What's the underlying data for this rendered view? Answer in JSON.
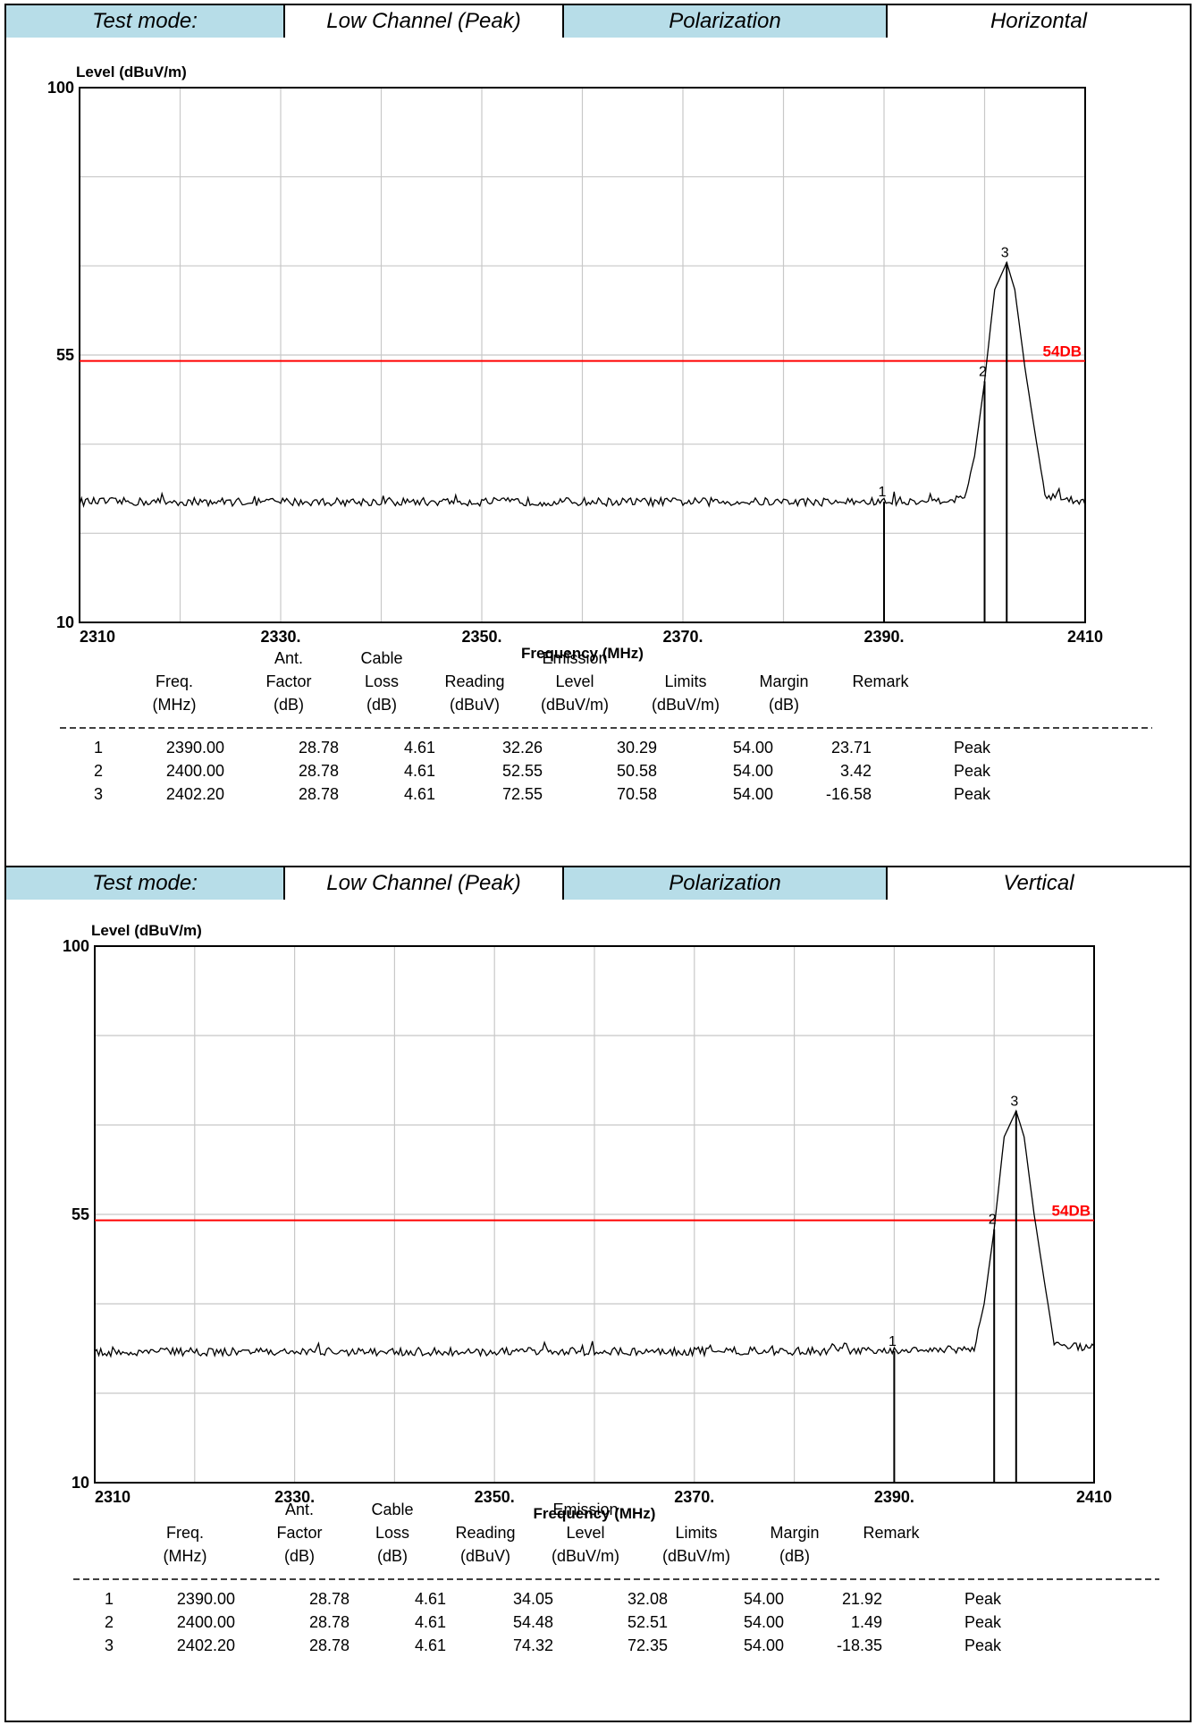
{
  "panels": [
    {
      "header": {
        "test_mode_label": "Test mode:",
        "test_mode_value": "Low Channel (Peak)",
        "polarization_label": "Polarization",
        "polarization_value": "Horizontal"
      },
      "chart_data": {
        "type": "line",
        "ylabel": "Level (dBuV/m)",
        "xlabel": "Frequency (MHz)",
        "xlim": [
          2310,
          2410
        ],
        "ylim": [
          10,
          100
        ],
        "xticks": [
          2310,
          2330,
          2350,
          2370,
          2390,
          2410
        ],
        "xtick_labels": [
          "2310",
          "2330.",
          "2350.",
          "2370.",
          "2390.",
          "2410"
        ],
        "yticks": [
          10,
          55,
          100
        ],
        "ytick_labels": [
          "10",
          "55",
          "100"
        ],
        "grid": true,
        "limit_line": {
          "value": 54,
          "label": "54DB",
          "color": "#ff0000"
        },
        "noise_floor": 30.5,
        "series": [
          {
            "x": [
              2310,
              2390,
              2398,
              2399,
              2400,
              2401,
              2402.2,
              2403,
              2404,
              2405,
              2406,
              2410
            ],
            "y": [
              30.3,
              30.29,
              30.8,
              38,
              50.58,
              66,
              70.58,
              66,
              53,
              42,
              31.5,
              30.3
            ]
          }
        ],
        "markers": [
          {
            "label": "1",
            "x": 2390.0,
            "y": 30.29
          },
          {
            "label": "2",
            "x": 2400.0,
            "y": 50.58
          },
          {
            "label": "3",
            "x": 2402.2,
            "y": 70.58
          }
        ]
      },
      "table": {
        "header_line1": [
          "",
          "Ant.",
          "Cable",
          "",
          "Emission",
          "",
          "",
          ""
        ],
        "header_line2": [
          "Freq.",
          "Factor",
          "Loss",
          "Reading",
          "Level",
          "Limits",
          "Margin",
          "Remark"
        ],
        "header_line3": [
          "(MHz)",
          "(dB)",
          "(dB)",
          "(dBuV)",
          "(dBuV/m)",
          "(dBuV/m)",
          "(dB)",
          ""
        ],
        "rows": [
          [
            "1",
            "2390.00",
            "28.78",
            "4.61",
            "32.26",
            "30.29",
            "54.00",
            "23.71",
            "Peak"
          ],
          [
            "2",
            "2400.00",
            "28.78",
            "4.61",
            "52.55",
            "50.58",
            "54.00",
            "3.42",
            "Peak"
          ],
          [
            "3",
            "2402.20",
            "28.78",
            "4.61",
            "72.55",
            "70.58",
            "54.00",
            "-16.58",
            "Peak"
          ]
        ]
      }
    },
    {
      "header": {
        "test_mode_label": "Test mode:",
        "test_mode_value": "Low Channel (Peak)",
        "polarization_label": "Polarization",
        "polarization_value": "Vertical"
      },
      "chart_data": {
        "type": "line",
        "ylabel": "Level (dBuV/m)",
        "xlabel": "Frequency (MHz)",
        "xlim": [
          2310,
          2410
        ],
        "ylim": [
          10,
          100
        ],
        "xticks": [
          2310,
          2330,
          2350,
          2370,
          2390,
          2410
        ],
        "xtick_labels": [
          "2310",
          "2330.",
          "2350.",
          "2370.",
          "2390.",
          "2410"
        ],
        "yticks": [
          10,
          55,
          100
        ],
        "ytick_labels": [
          "10",
          "55",
          "100"
        ],
        "grid": true,
        "limit_line": {
          "value": 54,
          "label": "54DB",
          "color": "#ff0000"
        },
        "noise_floor": 32.2,
        "series": [
          {
            "x": [
              2310,
              2390,
              2398,
              2399,
              2400,
              2401,
              2402.2,
              2403,
              2404,
              2405,
              2406,
              2410
            ],
            "y": [
              31.9,
              32.08,
              32.5,
              40,
              52.51,
              68,
              72.35,
              68,
              55,
              44,
              33.5,
              32.5
            ]
          }
        ],
        "markers": [
          {
            "label": "1",
            "x": 2390.0,
            "y": 32.08
          },
          {
            "label": "2",
            "x": 2400.0,
            "y": 52.51
          },
          {
            "label": "3",
            "x": 2402.2,
            "y": 72.35
          }
        ]
      },
      "table": {
        "header_line1": [
          "",
          "Ant.",
          "Cable",
          "",
          "Emission",
          "",
          "",
          ""
        ],
        "header_line2": [
          "Freq.",
          "Factor",
          "Loss",
          "Reading",
          "Level",
          "Limits",
          "Margin",
          "Remark"
        ],
        "header_line3": [
          "(MHz)",
          "(dB)",
          "(dB)",
          "(dBuV)",
          "(dBuV/m)",
          "(dBuV/m)",
          "(dB)",
          ""
        ],
        "rows": [
          [
            "1",
            "2390.00",
            "28.78",
            "4.61",
            "34.05",
            "32.08",
            "54.00",
            "21.92",
            "Peak"
          ],
          [
            "2",
            "2400.00",
            "28.78",
            "4.61",
            "54.48",
            "52.51",
            "54.00",
            "1.49",
            "Peak"
          ],
          [
            "3",
            "2402.20",
            "28.78",
            "4.61",
            "74.32",
            "72.35",
            "54.00",
            "-18.35",
            "Peak"
          ]
        ]
      }
    }
  ]
}
